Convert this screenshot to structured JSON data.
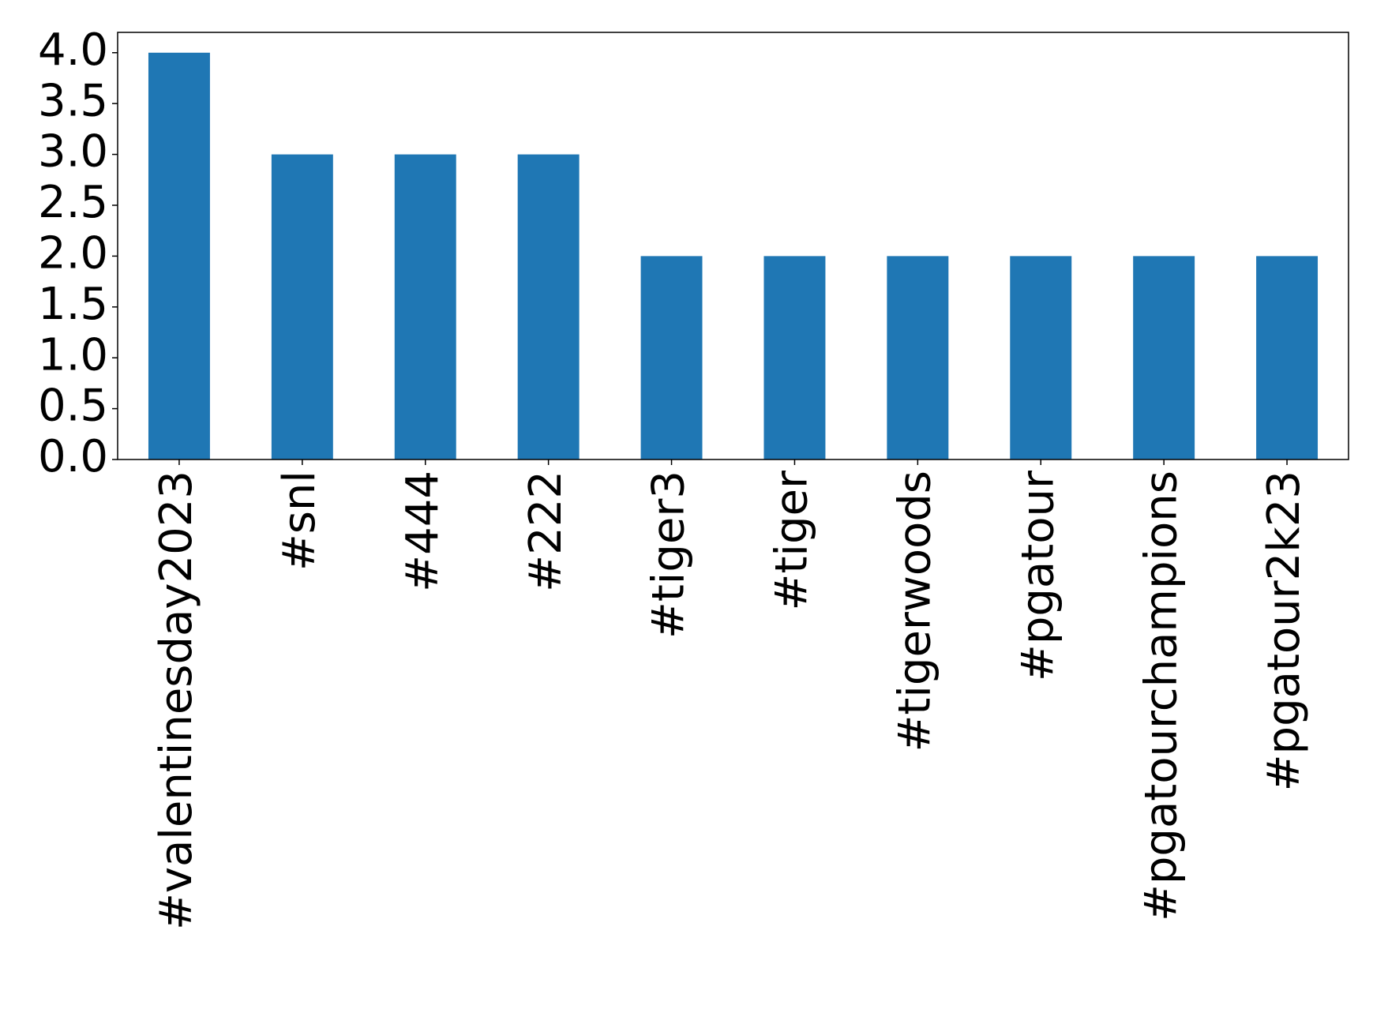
{
  "chart_data": {
    "type": "bar",
    "categories": [
      "#valentinesday2023",
      "#snl",
      "#444",
      "#222",
      "#tiger3",
      "#tiger",
      "#tigerwoods",
      "#pgatour",
      "#pgatourchampions",
      "#pgatour2k23"
    ],
    "values": [
      4,
      3,
      3,
      3,
      2,
      2,
      2,
      2,
      2,
      2
    ],
    "color": "#1f77b4",
    "ylim": [
      0,
      4.2
    ],
    "yticks": [
      {
        "value": 0,
        "label": "0.0"
      },
      {
        "value": 0.5,
        "label": "0.5"
      },
      {
        "value": 1,
        "label": "1.0"
      },
      {
        "value": 1.5,
        "label": "1.5"
      },
      {
        "value": 2,
        "label": "2.0"
      },
      {
        "value": 2.5,
        "label": "2.5"
      },
      {
        "value": 3,
        "label": "3.0"
      },
      {
        "value": 3.5,
        "label": "3.5"
      },
      {
        "value": 4,
        "label": "4.0"
      }
    ],
    "grid": false
  }
}
